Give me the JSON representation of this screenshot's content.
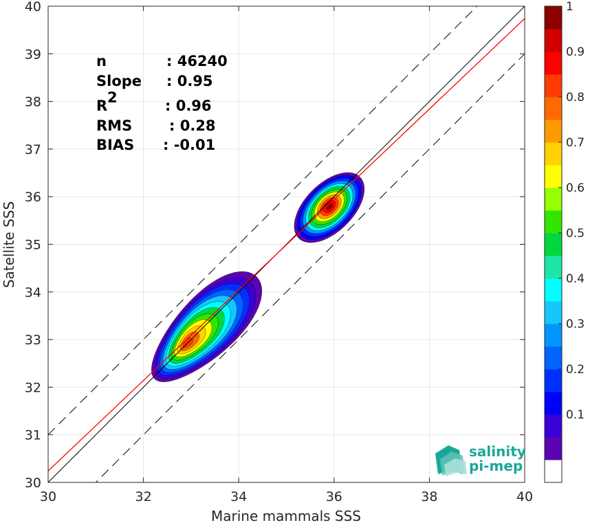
{
  "chart_data": {
    "type": "scatter",
    "xlabel": "Marine mammals SSS",
    "ylabel": "Satellite SSS",
    "xlim": [
      30,
      40
    ],
    "ylim": [
      30,
      40
    ],
    "x_ticks": [
      "30",
      "32",
      "34",
      "36",
      "38",
      "40"
    ],
    "y_ticks": [
      "30",
      "31",
      "32",
      "33",
      "34",
      "35",
      "36",
      "37",
      "38",
      "39",
      "40"
    ],
    "grid": true,
    "stats": [
      {
        "label": "n",
        "value": ": 46240"
      },
      {
        "label": "Slope",
        "value": ": 0.95"
      },
      {
        "label": "R",
        "sup": "2",
        "value": ": 0.96"
      },
      {
        "label": "RMS",
        "value": ": 0.28"
      },
      {
        "label": "BIAS",
        "value": ": -0.01"
      }
    ],
    "lines": {
      "one_to_one": {
        "slope": 1,
        "intercept": 0,
        "color": "#000000"
      },
      "fit": {
        "slope": 0.95,
        "intercept": 1.74,
        "color": "#ff0000"
      },
      "offsets": [
        1,
        -1
      ]
    },
    "density_clusters": [
      {
        "center": [
          32.9,
          32.9
        ],
        "label": "cluster-low"
      },
      {
        "center": [
          35.9,
          35.8
        ],
        "label": "cluster-high"
      }
    ],
    "colorbar": {
      "ticks": [
        "0.1",
        "0.2",
        "0.3",
        "0.4",
        "0.5",
        "0.6",
        "0.7",
        "0.8",
        "0.9",
        "1"
      ],
      "levels": 20,
      "colors": [
        "#ffffff",
        "#5b05b0",
        "#3a00d8",
        "#0000ff",
        "#0030ff",
        "#0064ff",
        "#0096ff",
        "#14c8ff",
        "#00ffff",
        "#1ee6a6",
        "#00d840",
        "#32e600",
        "#96ff00",
        "#ffff00",
        "#ffd200",
        "#ff9b00",
        "#ff6900",
        "#ff3c00",
        "#ff0000",
        "#d20000",
        "#8b0000"
      ]
    },
    "logo": {
      "line1": "salinity",
      "line2": "pi-mep"
    }
  }
}
